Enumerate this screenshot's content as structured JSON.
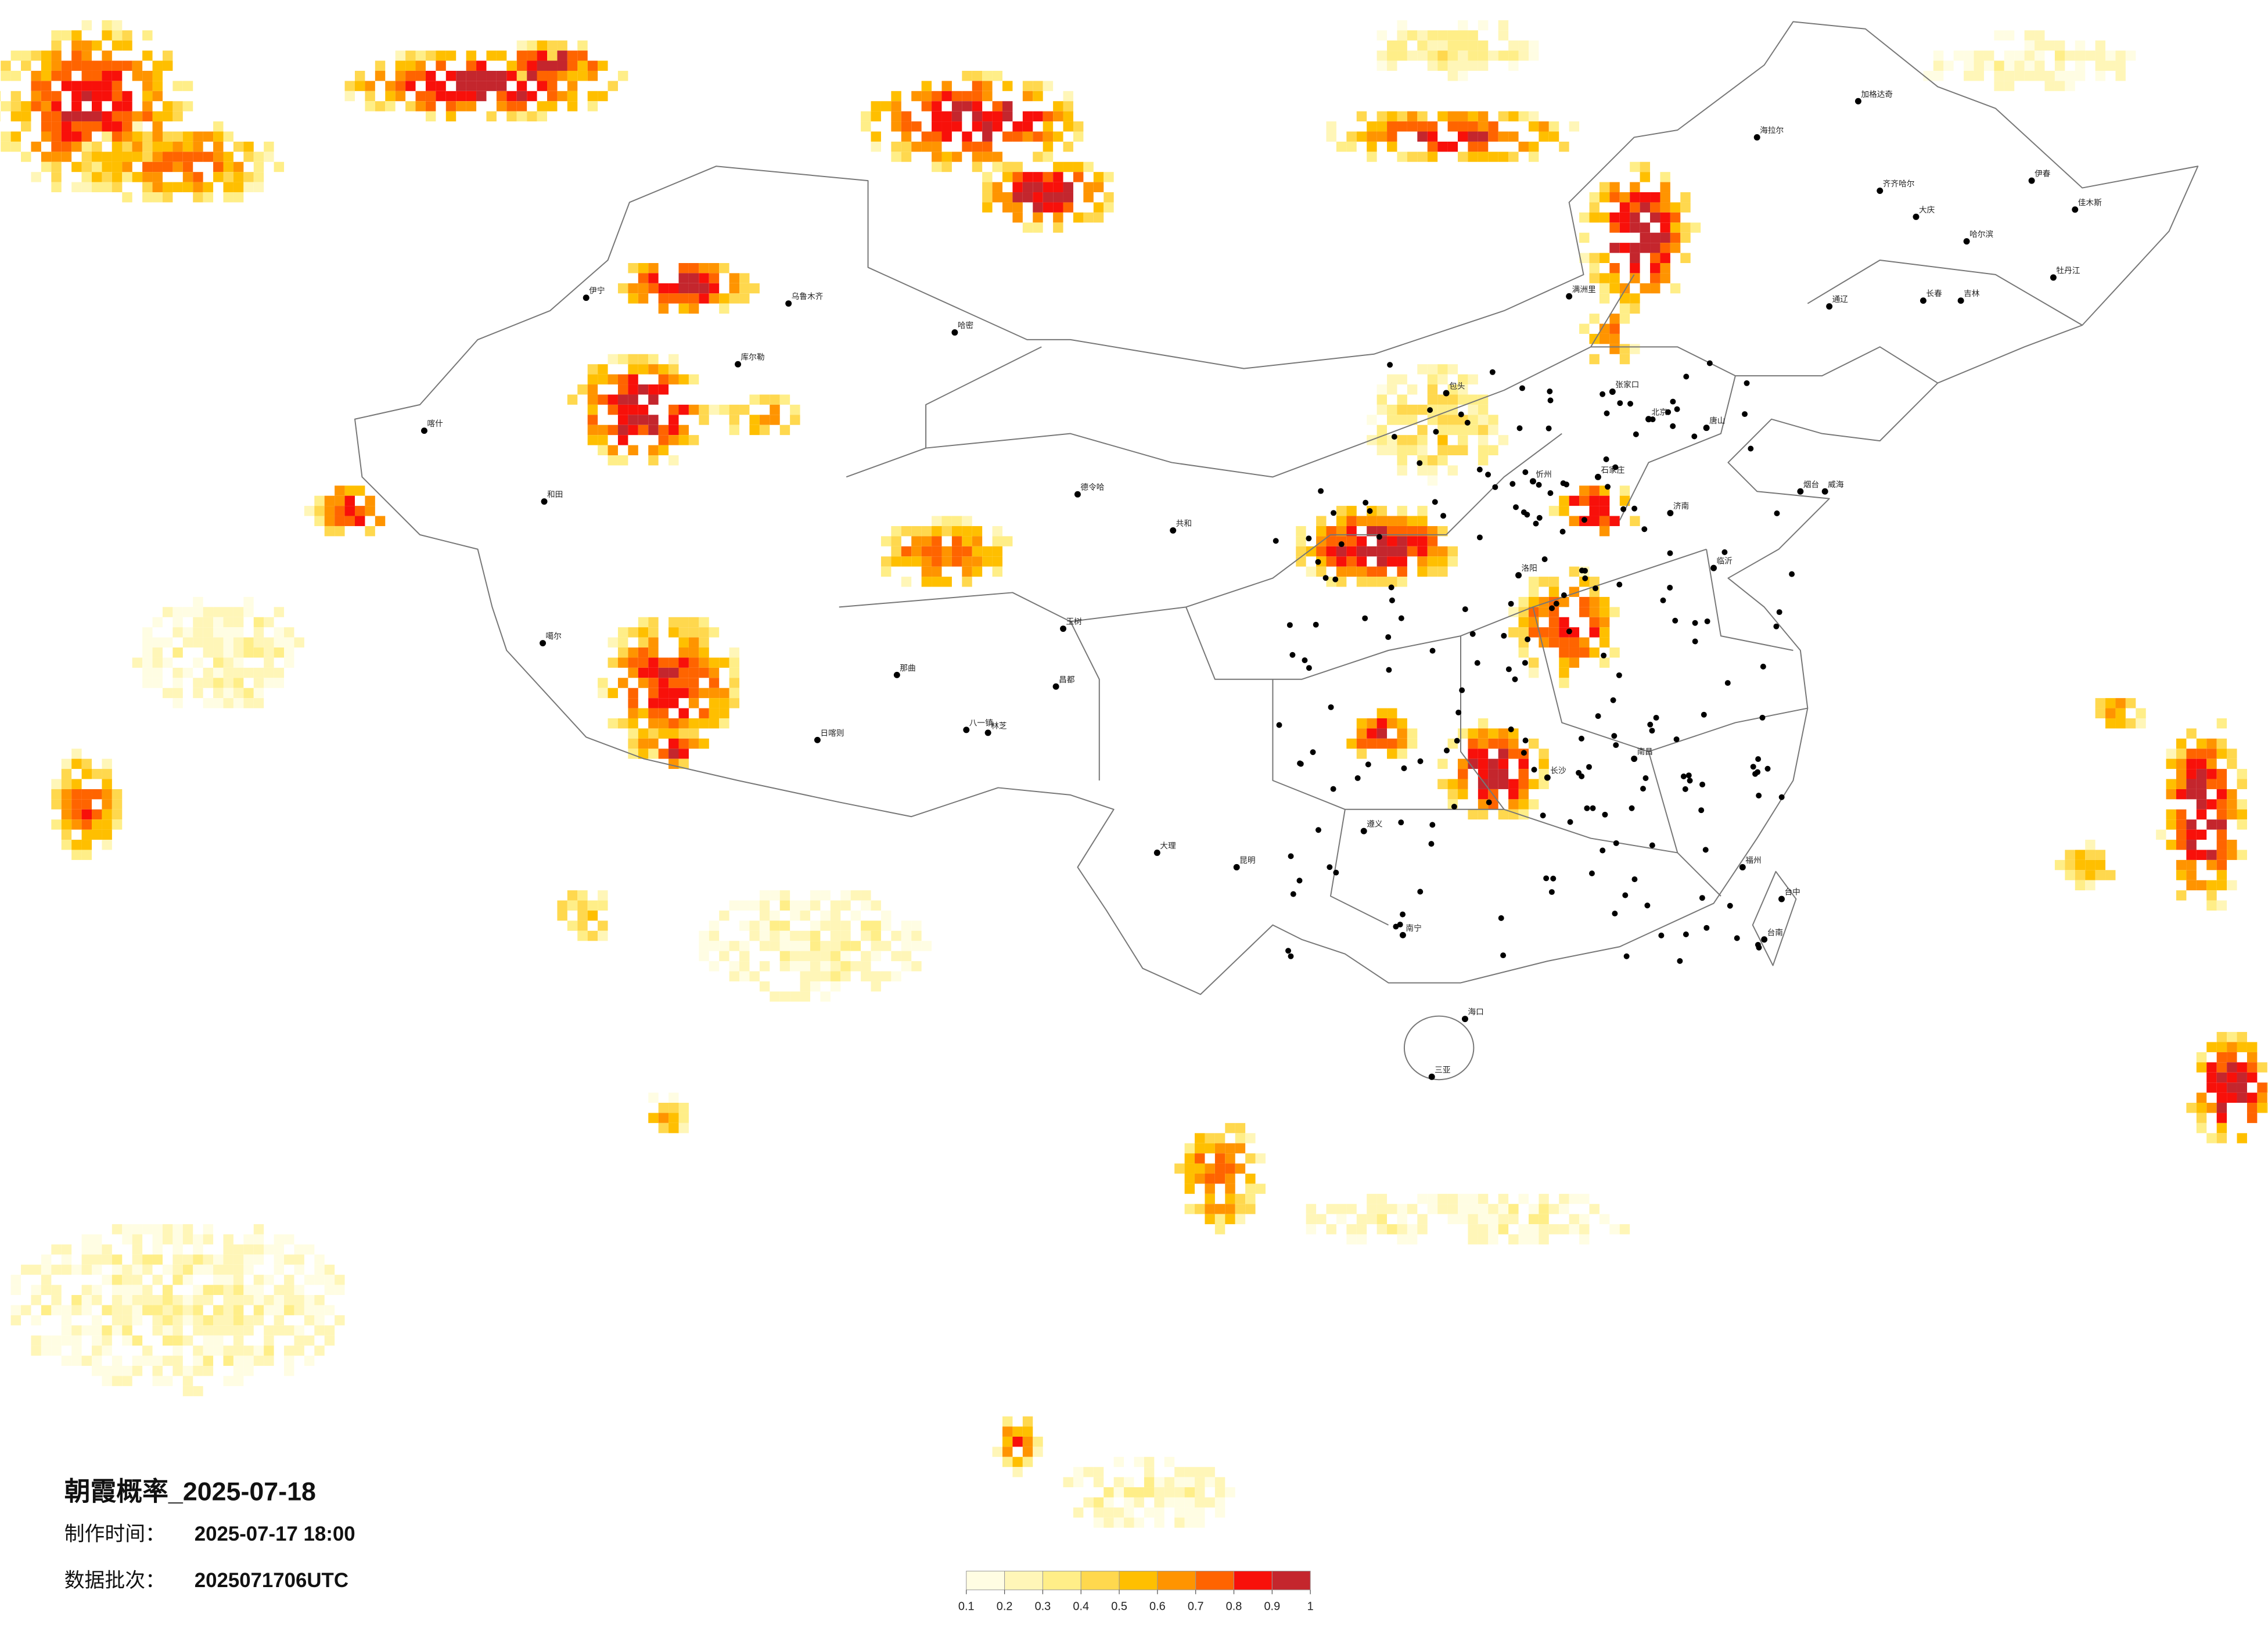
{
  "title": "朝霞概率_2025-07-18",
  "made_time": {
    "label": "制作时间：",
    "value": "2025-07-17 18:00"
  },
  "batch": {
    "label": "数据批次：",
    "value": "2025071706UTC"
  },
  "legend": {
    "ticks": [
      0.1,
      0.2,
      0.3,
      0.4,
      0.5,
      0.6,
      0.7,
      0.8,
      0.9,
      1
    ],
    "colors": [
      "#fffde3",
      "#fff6b8",
      "#ffee88",
      "#ffd84e",
      "#ffbf00",
      "#ff9400",
      "#ff6400",
      "#f8100a",
      "#c4262d"
    ]
  },
  "cities": [
    "满洲里",
    "海拉尔",
    "加格达奇",
    "齐齐哈尔",
    "大庆",
    "哈尔滨",
    "伊春",
    "佳木斯",
    "牡丹江",
    "长春",
    "吉林",
    "通辽",
    "张家口",
    "北京",
    "唐山",
    "石家庄",
    "忻州",
    "济南",
    "烟台",
    "威海",
    "临沂",
    "洛阳",
    "共和",
    "包头",
    "乌鲁木齐",
    "哈密",
    "库尔勒",
    "伊宁",
    "和田",
    "喀什",
    "噶尔",
    "日喀则",
    "八一镇",
    "林芝",
    "那曲",
    "昌都",
    "玉树",
    "德令哈",
    "遵义",
    "昆明",
    "大理",
    "南宁",
    "海口",
    "三亚",
    "福州",
    "台中",
    "台南",
    "南昌",
    "长沙"
  ]
}
